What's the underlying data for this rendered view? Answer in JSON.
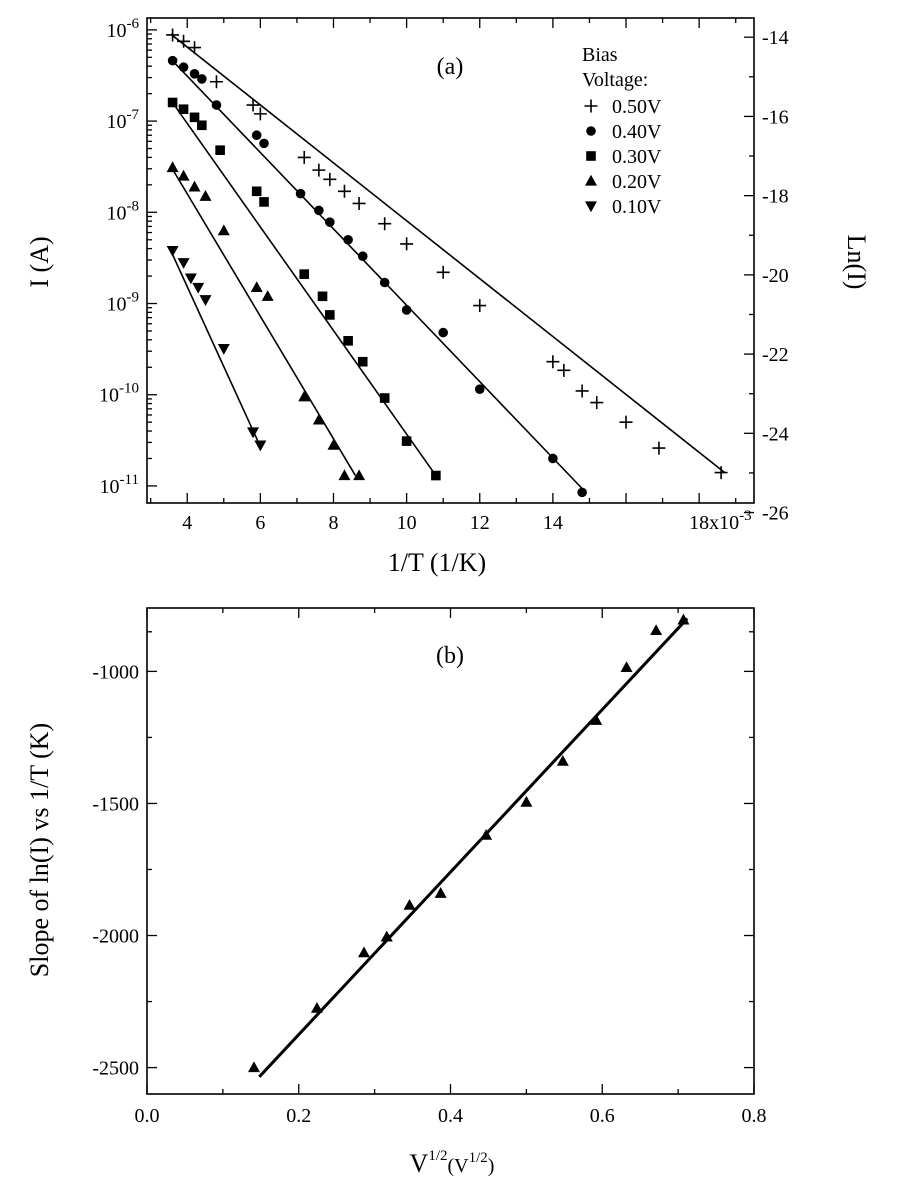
{
  "chart_data": [
    {
      "panel": "(a)",
      "type": "scatter",
      "xlabel": "1/T (1/K)",
      "ylabel": "I (A)",
      "ylabel_right": "Ln(I)",
      "x_scale_label": "18x10",
      "x_scale_exp": "-3",
      "xlim": [
        2.9,
        19.5
      ],
      "ylim": [
        6.5e-12,
        1.35e-06
      ],
      "y_scale": "log",
      "x_ticks": [
        4,
        6,
        8,
        10,
        12,
        14,
        16,
        18
      ],
      "x_tick_labels": [
        "4",
        "6",
        "8",
        "10",
        "12",
        "14",
        "",
        "18x10"
      ],
      "y_ticks": [
        {
          "value": 1e-06,
          "base": "10",
          "exp": "-6"
        },
        {
          "value": 1e-07,
          "base": "10",
          "exp": "-7"
        },
        {
          "value": 1e-08,
          "base": "10",
          "exp": "-8"
        },
        {
          "value": 1e-09,
          "base": "10",
          "exp": "-9"
        },
        {
          "value": 1e-10,
          "base": "10",
          "exp": "-10"
        },
        {
          "value": 1e-11,
          "base": "10",
          "exp": "-11"
        }
      ],
      "right_ticks": [
        {
          "value": -14,
          "label": "-14"
        },
        {
          "value": -16,
          "label": "-16"
        },
        {
          "value": -18,
          "label": "-18"
        },
        {
          "value": -20,
          "label": "-20"
        },
        {
          "value": -22,
          "label": "-22"
        },
        {
          "value": -24,
          "label": "-24"
        },
        {
          "value": -26,
          "label": "-26"
        }
      ],
      "legend": {
        "title_line1": "Bias",
        "title_line2": "Voltage:",
        "placement": "top-right"
      },
      "series": [
        {
          "name": "0.50V",
          "marker": "plus",
          "fit": [
            [
              3.55,
              9e-07
            ],
            [
              18.7,
              1.4e-11
            ]
          ],
          "points": [
            [
              3.6,
              8.8e-07
            ],
            [
              3.9,
              7.5e-07
            ],
            [
              4.2,
              6.4e-07
            ],
            [
              4.8,
              2.7e-07
            ],
            [
              5.8,
              1.5e-07
            ],
            [
              6.0,
              1.2e-07
            ],
            [
              7.2,
              4e-08
            ],
            [
              7.6,
              2.9e-08
            ],
            [
              7.9,
              2.3e-08
            ],
            [
              8.3,
              1.7e-08
            ],
            [
              8.7,
              1.25e-08
            ],
            [
              9.4,
              7.5e-09
            ],
            [
              10.0,
              4.5e-09
            ],
            [
              11.0,
              2.2e-09
            ],
            [
              12.0,
              9.5e-10
            ],
            [
              14.0,
              2.3e-10
            ],
            [
              14.3,
              1.85e-10
            ],
            [
              14.8,
              1.1e-10
            ],
            [
              15.2,
              8.2e-11
            ],
            [
              16.0,
              5e-11
            ],
            [
              16.9,
              2.6e-11
            ],
            [
              18.6,
              1.4e-11
            ]
          ]
        },
        {
          "name": "0.40V",
          "marker": "circle",
          "fit": [
            [
              3.55,
              4.8e-07
            ],
            [
              14.9,
              8.5e-12
            ]
          ],
          "points": [
            [
              3.6,
              4.6e-07
            ],
            [
              3.9,
              3.9e-07
            ],
            [
              4.2,
              3.3e-07
            ],
            [
              4.4,
              2.9e-07
            ],
            [
              4.8,
              1.5e-07
            ],
            [
              5.9,
              7e-08
            ],
            [
              6.1,
              5.7e-08
            ],
            [
              7.1,
              1.6e-08
            ],
            [
              7.6,
              1.05e-08
            ],
            [
              7.9,
              7.8e-09
            ],
            [
              8.4,
              5e-09
            ],
            [
              8.8,
              3.3e-09
            ],
            [
              9.4,
              1.7e-09
            ],
            [
              10.0,
              8.5e-10
            ],
            [
              11.0,
              4.8e-10
            ],
            [
              12.0,
              1.15e-10
            ],
            [
              14.0,
              2e-11
            ],
            [
              14.8,
              8.5e-12
            ]
          ]
        },
        {
          "name": "0.30V",
          "marker": "square",
          "fit": [
            [
              3.55,
              1.7e-07
            ],
            [
              10.8,
              1.3e-11
            ]
          ],
          "points": [
            [
              3.6,
              1.6e-07
            ],
            [
              3.9,
              1.35e-07
            ],
            [
              4.2,
              1.1e-07
            ],
            [
              4.4,
              9e-08
            ],
            [
              4.9,
              4.8e-08
            ],
            [
              5.9,
              1.7e-08
            ],
            [
              6.1,
              1.3e-08
            ],
            [
              7.2,
              2.1e-09
            ],
            [
              7.7,
              1.2e-09
            ],
            [
              7.9,
              7.5e-10
            ],
            [
              8.4,
              3.9e-10
            ],
            [
              8.8,
              2.3e-10
            ],
            [
              9.4,
              9.2e-11
            ],
            [
              10.0,
              3.1e-11
            ],
            [
              10.8,
              1.3e-11
            ]
          ]
        },
        {
          "name": "0.20V",
          "marker": "triangle-up",
          "fit": [
            [
              3.55,
              3.2e-08
            ],
            [
              8.6,
              1.3e-11
            ]
          ],
          "points": [
            [
              3.6,
              3.1e-08
            ],
            [
              3.9,
              2.5e-08
            ],
            [
              4.2,
              1.9e-08
            ],
            [
              4.5,
              1.5e-08
            ],
            [
              5.0,
              6.3e-09
            ],
            [
              5.9,
              1.5e-09
            ],
            [
              6.2,
              1.2e-09
            ],
            [
              7.2,
              9.5e-11
            ],
            [
              7.6,
              5.3e-11
            ],
            [
              8.0,
              2.8e-11
            ],
            [
              8.3,
              1.3e-11
            ],
            [
              8.7,
              1.3e-11
            ]
          ]
        },
        {
          "name": "0.10V",
          "marker": "triangle-down",
          "fit": [
            [
              3.55,
              3.8e-09
            ],
            [
              6.0,
              2.7e-11
            ]
          ],
          "points": [
            [
              3.6,
              3.8e-09
            ],
            [
              3.9,
              2.8e-09
            ],
            [
              4.1,
              1.9e-09
            ],
            [
              4.3,
              1.5e-09
            ],
            [
              4.5,
              1.1e-09
            ],
            [
              5.0,
              3.2e-10
            ],
            [
              5.8,
              3.9e-11
            ],
            [
              6.0,
              2.8e-11
            ]
          ]
        }
      ]
    },
    {
      "panel": "(b)",
      "type": "scatter",
      "xlabel_base": "V",
      "xlabel_sup": "1/2",
      "xlabel_unit_base": "(V",
      "xlabel_unit_sup": "1/2",
      "xlabel_unit_close": ")",
      "ylabel": "Slope of ln(I) vs 1/T  (K)",
      "xlim": [
        0.0,
        0.8
      ],
      "ylim": [
        -2600,
        -760
      ],
      "x_ticks": [
        {
          "value": 0.0,
          "label": "0.0"
        },
        {
          "value": 0.2,
          "label": "0.2"
        },
        {
          "value": 0.4,
          "label": "0.4"
        },
        {
          "value": 0.6,
          "label": "0.6"
        },
        {
          "value": 0.8,
          "label": "0.8"
        }
      ],
      "y_ticks": [
        {
          "value": -1000,
          "label": "-1000"
        },
        {
          "value": -1500,
          "label": "-1500"
        },
        {
          "value": -2000,
          "label": "-2000"
        },
        {
          "value": -2500,
          "label": "-2500"
        }
      ],
      "fit": [
        [
          0.148,
          -2535
        ],
        [
          0.712,
          -800
        ]
      ],
      "series": [
        {
          "marker": "triangle-up",
          "points": [
            [
              0.141,
              -2500
            ],
            [
              0.224,
              -2275
            ],
            [
              0.286,
              -2065
            ],
            [
              0.316,
              -2005
            ],
            [
              0.346,
              -1885
            ],
            [
              0.387,
              -1840
            ],
            [
              0.447,
              -1620
            ],
            [
              0.5,
              -1495
            ],
            [
              0.548,
              -1340
            ],
            [
              0.592,
              -1185
            ],
            [
              0.632,
              -985
            ],
            [
              0.671,
              -845
            ],
            [
              0.707,
              -805
            ]
          ]
        }
      ]
    }
  ]
}
